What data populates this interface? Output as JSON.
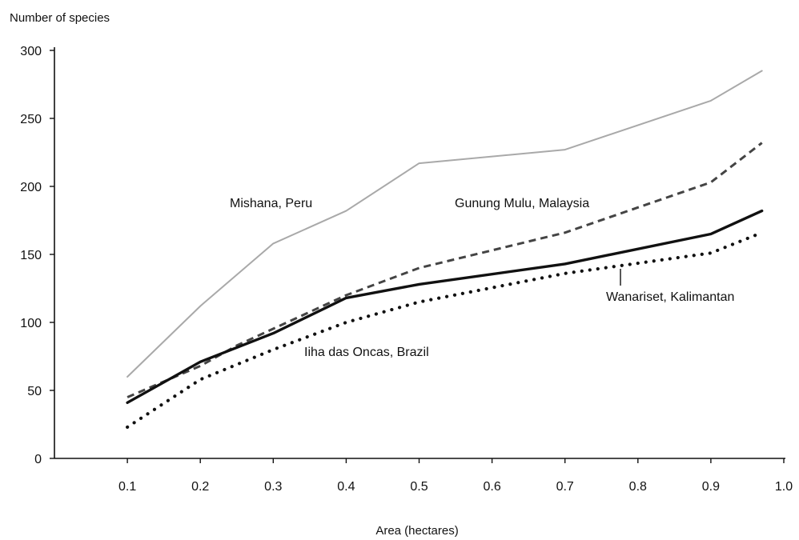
{
  "chart_data": {
    "type": "line",
    "title": "",
    "xlabel": "Area (hectares)",
    "ylabel": "Number of species",
    "xlim": [
      0,
      1.0
    ],
    "ylim": [
      0,
      300
    ],
    "x_ticks": [
      "0.1",
      "0.2",
      "0.3",
      "0.4",
      "0.5",
      "0.6",
      "0.7",
      "0.8",
      "0.9",
      "1.0"
    ],
    "y_ticks": [
      "0",
      "50",
      "100",
      "150",
      "200",
      "250",
      "300"
    ],
    "grid": false,
    "legend": "none (series labelled directly on the chart)",
    "series": [
      {
        "name": "Mishana, Peru",
        "style": "solid light grey",
        "color": "#a9a9a9",
        "x": [
          0.1,
          0.2,
          0.3,
          0.4,
          0.5,
          0.7,
          0.9,
          0.97
        ],
        "y": [
          60,
          112,
          158,
          182,
          217,
          227,
          263,
          285
        ]
      },
      {
        "name": "Gunung Mulu, Malaysia",
        "style": "dashed",
        "color": "#444444",
        "x": [
          0.1,
          0.2,
          0.25,
          0.4,
          0.5,
          0.7,
          0.9,
          0.97
        ],
        "y": [
          45,
          68,
          83,
          120,
          140,
          166,
          203,
          232
        ]
      },
      {
        "name": "Wanariset, Kalimantan",
        "style": "solid heavy",
        "color": "#111111",
        "x": [
          0.1,
          0.2,
          0.3,
          0.4,
          0.5,
          0.7,
          0.9,
          0.97
        ],
        "y": [
          41,
          71,
          92,
          118,
          128,
          143,
          165,
          182
        ]
      },
      {
        "name": "Iiha das Oncas, Brazil",
        "style": "dotted",
        "color": "#111111",
        "x": [
          0.1,
          0.2,
          0.3,
          0.4,
          0.5,
          0.7,
          0.9,
          0.97
        ],
        "y": [
          23,
          58,
          80,
          100,
          115,
          136,
          151,
          166
        ]
      }
    ],
    "annotations": [
      {
        "text": "Mishana, Peru",
        "series": "Mishana, Peru"
      },
      {
        "text": "Gunung Mulu, Malaysia",
        "series": "Gunung Mulu, Malaysia"
      },
      {
        "text": "Wanariset, Kalimantan",
        "series": "Wanariset, Kalimantan"
      },
      {
        "text": "Iiha das Oncas, Brazil",
        "series": "Iiha das Oncas, Brazil"
      }
    ]
  }
}
